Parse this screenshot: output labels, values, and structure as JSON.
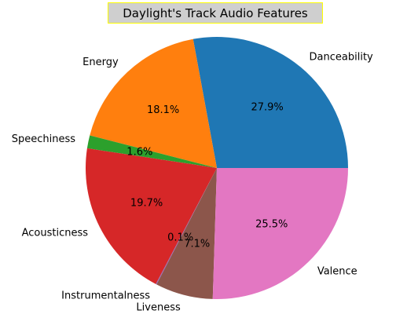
{
  "chart_data": {
    "type": "pie",
    "title": "Daylight's Track Audio Features",
    "title_box": {
      "background": "#cfcfcf",
      "border": "#ffff00"
    },
    "start_angle_deg": 0,
    "direction": "counterclockwise",
    "slices": [
      {
        "label": "Danceability",
        "value": 27.9,
        "pct_label": "27.9%",
        "color": "#1f77b4"
      },
      {
        "label": "Energy",
        "value": 18.1,
        "pct_label": "18.1%",
        "color": "#ff7f0e"
      },
      {
        "label": "Speechiness",
        "value": 1.6,
        "pct_label": "1.6%",
        "color": "#2ca02c"
      },
      {
        "label": "Acousticness",
        "value": 19.7,
        "pct_label": "19.7%",
        "color": "#d62728"
      },
      {
        "label": "Instrumentalness",
        "value": 0.1,
        "pct_label": "0.1%",
        "color": "#9467bd"
      },
      {
        "label": "Liveness",
        "value": 7.1,
        "pct_label": "7.1%",
        "color": "#8c564b"
      },
      {
        "label": "Valence",
        "value": 25.5,
        "pct_label": "25.5%",
        "color": "#e377c2"
      }
    ]
  }
}
